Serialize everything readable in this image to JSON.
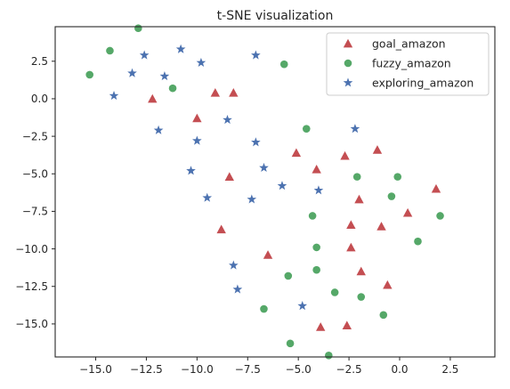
{
  "chart_data": {
    "type": "scatter",
    "title": "t-SNE visualization",
    "xlabel": "",
    "ylabel": "",
    "xlim": [
      -17.0,
      4.7
    ],
    "ylim": [
      -17.2,
      4.8
    ],
    "xticks": [
      -15.0,
      -12.5,
      -10.0,
      -7.5,
      -5.0,
      -2.5,
      0.0,
      2.5
    ],
    "xtick_labels": [
      "−15.0",
      "−12.5",
      "−10.0",
      "−7.5",
      "−5.0",
      "−2.5",
      "0.0",
      "2.5"
    ],
    "yticks": [
      2.5,
      0.0,
      -2.5,
      -5.0,
      -7.5,
      -10.0,
      -12.5,
      -15.0
    ],
    "ytick_labels": [
      "2.5",
      "0.0",
      "−2.5",
      "−5.0",
      "−7.5",
      "−10.0",
      "−12.5",
      "−15.0"
    ],
    "grid": false,
    "legend_position": "top-right",
    "series": [
      {
        "name": "goal_amazon",
        "marker": "triangle",
        "color": "#c44e52",
        "points": [
          [
            -12.2,
            0.0
          ],
          [
            -9.1,
            0.4
          ],
          [
            -8.2,
            0.4
          ],
          [
            -10.0,
            -1.3
          ],
          [
            -5.1,
            -3.6
          ],
          [
            -4.1,
            -4.7
          ],
          [
            -2.7,
            -3.8
          ],
          [
            -1.1,
            -3.4
          ],
          [
            -8.4,
            -5.2
          ],
          [
            -2.0,
            -6.7
          ],
          [
            0.4,
            -7.6
          ],
          [
            1.8,
            -6.0
          ],
          [
            -8.8,
            -8.7
          ],
          [
            -2.4,
            -8.4
          ],
          [
            -0.9,
            -8.5
          ],
          [
            -2.4,
            -9.9
          ],
          [
            -6.5,
            -10.4
          ],
          [
            -1.9,
            -11.5
          ],
          [
            -0.6,
            -12.4
          ],
          [
            -3.9,
            -15.2
          ],
          [
            -2.6,
            -15.1
          ]
        ]
      },
      {
        "name": "fuzzy_amazon",
        "marker": "circle",
        "color": "#55a868",
        "points": [
          [
            -14.3,
            3.2
          ],
          [
            -12.9,
            4.7
          ],
          [
            -15.3,
            1.6
          ],
          [
            -11.2,
            0.7
          ],
          [
            -5.7,
            2.3
          ],
          [
            -4.6,
            -2.0
          ],
          [
            -2.1,
            -5.2
          ],
          [
            -0.1,
            -5.2
          ],
          [
            -0.4,
            -6.5
          ],
          [
            -4.3,
            -7.8
          ],
          [
            2.0,
            -7.8
          ],
          [
            -4.1,
            -9.9
          ],
          [
            0.9,
            -9.5
          ],
          [
            -4.1,
            -11.4
          ],
          [
            -5.5,
            -11.8
          ],
          [
            -3.2,
            -12.9
          ],
          [
            -1.9,
            -13.2
          ],
          [
            -6.7,
            -14.0
          ],
          [
            -0.8,
            -14.4
          ],
          [
            -5.4,
            -16.3
          ],
          [
            -3.5,
            -17.1
          ]
        ]
      },
      {
        "name": "exploring_amazon",
        "marker": "star",
        "color": "#4c72b0",
        "points": [
          [
            -12.6,
            2.9
          ],
          [
            -10.8,
            3.3
          ],
          [
            -7.1,
            2.9
          ],
          [
            -13.2,
            1.7
          ],
          [
            -11.6,
            1.5
          ],
          [
            -9.8,
            2.4
          ],
          [
            -14.1,
            0.2
          ],
          [
            -8.5,
            -1.4
          ],
          [
            -11.9,
            -2.1
          ],
          [
            -10.0,
            -2.8
          ],
          [
            -7.1,
            -2.9
          ],
          [
            -2.2,
            -2.0
          ],
          [
            -10.3,
            -4.8
          ],
          [
            -6.7,
            -4.6
          ],
          [
            -5.8,
            -5.8
          ],
          [
            -4.0,
            -6.1
          ],
          [
            -9.5,
            -6.6
          ],
          [
            -7.3,
            -6.7
          ],
          [
            -8.2,
            -11.1
          ],
          [
            -8.0,
            -12.7
          ],
          [
            -4.8,
            -13.8
          ]
        ]
      }
    ]
  }
}
